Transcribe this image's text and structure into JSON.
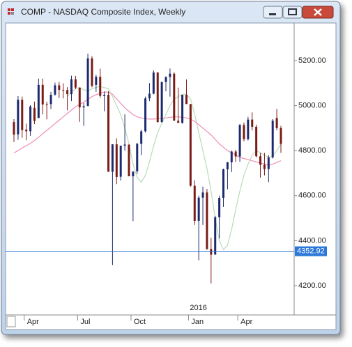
{
  "chart_data": {
    "type": "candlestick",
    "title": "COMP - NASDAQ Composite Index, Weekly",
    "categories": [
      null,
      null,
      null,
      "Apr",
      null,
      null,
      null,
      null,
      null,
      null,
      null,
      null,
      null,
      null,
      null,
      null,
      "Jul",
      null,
      null,
      null,
      null,
      null,
      null,
      null,
      null,
      null,
      null,
      null,
      null,
      "Oct",
      null,
      null,
      null,
      null,
      null,
      null,
      null,
      null,
      null,
      null,
      null,
      null,
      null,
      "Jan",
      null,
      null,
      null,
      null,
      null,
      null,
      null,
      null,
      null,
      null,
      null,
      "Apr",
      null,
      null,
      null,
      null,
      null,
      null,
      null,
      null,
      null,
      null
    ],
    "year_annotation": {
      "index": 43,
      "text": "2016"
    },
    "ohlc": {
      "up_color": "#1c2b6e",
      "down_color": "#7a1b16",
      "open": [
        4927,
        4872,
        5026,
        4893,
        4886,
        4990,
        4945,
        5092,
        5005,
        5007,
        5049,
        5090,
        5070,
        5069,
        5051,
        5117,
        5080,
        4992,
        4998,
        5210,
        5092,
        5128,
        5043,
        5048,
        4706,
        4828,
        4684,
        4822,
        4827,
        4686,
        4708,
        4830,
        4886,
        5032,
        5053,
        5147,
        4927,
        5105,
        5127,
        5142,
        4933,
        4923,
        5048,
        5007,
        4644,
        4488,
        4591,
        4614,
        4363,
        4338,
        4504,
        4590,
        4717,
        4748,
        4796,
        4774,
        4914,
        4851,
        4938,
        4906,
        4775,
        4737,
        4718,
        4770,
        4945,
        4900
      ],
      "high": [
        4940,
        5042,
        5040,
        4920,
        5002,
        5018,
        5120,
        5120,
        5017,
        5061,
        5102,
        5105,
        5099,
        5082,
        5133,
        5132,
        5080,
        5011,
        5231,
        5220,
        5137,
        5164,
        5063,
        5064,
        4828,
        4855,
        4822,
        4961,
        4827,
        4707,
        4835,
        4893,
        5040,
        5100,
        5157,
        5148,
        5105,
        5130,
        5165,
        5148,
        5080,
        5048,
        5116,
        5007,
        4668,
        4600,
        4640,
        4630,
        4413,
        4510,
        4600,
        4720,
        4750,
        4800,
        4804,
        4918,
        4925,
        4950,
        4970,
        4915,
        4790,
        4790,
        4780,
        4940,
        4985,
        4910
      ],
      "low": [
        4838,
        4848,
        4857,
        4846,
        4866,
        4918,
        4945,
        4961,
        4939,
        4985,
        5044,
        5034,
        5032,
        4979,
        5020,
        5073,
        4928,
        4910,
        4998,
        5081,
        5061,
        5035,
        4975,
        4706,
        4292,
        4651,
        4667,
        4800,
        4687,
        4487,
        4697,
        4780,
        4880,
        5020,
        5050,
        4925,
        4925,
        5064,
        5040,
        4933,
        4924,
        4920,
        5007,
        4640,
        4470,
        4313,
        4470,
        4360,
        4210,
        4338,
        4410,
        4550,
        4628,
        4705,
        4750,
        4750,
        4841,
        4845,
        4890,
        4770,
        4680,
        4690,
        4660,
        4765,
        4890,
        4790
      ],
      "close": [
        4871,
        5026,
        4891,
        4886,
        4996,
        4932,
        5092,
        5005,
        5003,
        5048,
        5090,
        5070,
        5068,
        5051,
        5117,
        5080,
        4992,
        4997,
        5210,
        5088,
        5128,
        5043,
        5048,
        4706,
        4828,
        4683,
        4822,
        4827,
        4686,
        4707,
        4830,
        4886,
        5032,
        5053,
        5147,
        4927,
        5105,
        5127,
        5142,
        4933,
        4923,
        5048,
        5007,
        4644,
        4488,
        4591,
        4614,
        4363,
        4338,
        4504,
        4590,
        4717,
        4748,
        4796,
        4774,
        4914,
        4851,
        4938,
        4906,
        4775,
        4737,
        4718,
        4770,
        4933,
        4900,
        4830
      ]
    },
    "overlays": [
      {
        "color": "#b9dbb9",
        "values": [
          null,
          null,
          null,
          null,
          null,
          null,
          null,
          null,
          null,
          null,
          null,
          null,
          null,
          5040,
          5060,
          5075,
          5080,
          5070,
          5065,
          5075,
          5080,
          5085,
          5080,
          5075,
          5040,
          5000,
          4960,
          4900,
          4830,
          4740,
          4680,
          4660,
          4690,
          4750,
          4820,
          4880,
          4920,
          4960,
          5000,
          5030,
          5040,
          5050,
          5050,
          5030,
          4960,
          4880,
          4800,
          4720,
          4620,
          4500,
          4400,
          4360,
          4380,
          4450,
          4540,
          4620,
          4690,
          4740,
          4780,
          4800,
          4790,
          4780,
          4770,
          4775,
          4800,
          4830
        ]
      },
      {
        "color": "#f08cb8",
        "values": [
          4790,
          4800,
          4812,
          4822,
          4832,
          4845,
          4860,
          4875,
          4890,
          4905,
          4920,
          4935,
          4950,
          4965,
          4980,
          4995,
          5005,
          5015,
          5028,
          5040,
          5048,
          5055,
          5060,
          5060,
          5050,
          5030,
          5010,
          4990,
          4975,
          4960,
          4950,
          4945,
          4942,
          4940,
          4940,
          4942,
          4943,
          4945,
          4948,
          4950,
          4950,
          4948,
          4945,
          4940,
          4930,
          4915,
          4900,
          4885,
          4870,
          4850,
          4830,
          4815,
          4800,
          4790,
          4780,
          4770,
          4765,
          4760,
          4755,
          4750,
          4745,
          4740,
          4735,
          4740,
          4748,
          4755
        ]
      }
    ],
    "price_line": {
      "value": 4352.92,
      "color": "#2b78d8"
    },
    "ylim": [
      4070,
      5367
    ],
    "yticks": [
      {
        "value": 4200,
        "label": "4200.00"
      },
      {
        "value": 4400,
        "label": "4400.00"
      },
      {
        "value": 4600,
        "label": "4600.00"
      },
      {
        "value": 4800,
        "label": "4800.00"
      },
      {
        "value": 5000,
        "label": "5000.00"
      },
      {
        "value": 5200,
        "label": "5200.00"
      }
    ]
  }
}
